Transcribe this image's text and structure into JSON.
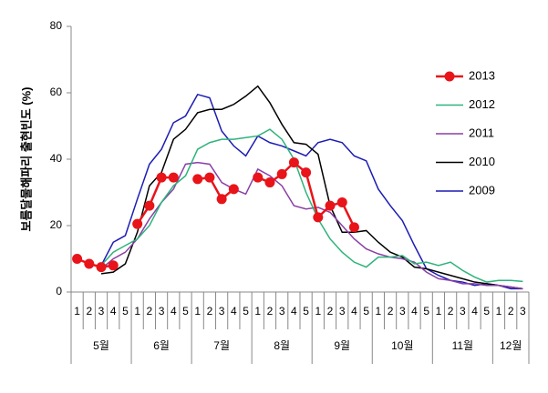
{
  "chart_data": {
    "type": "line",
    "y_label": "보름달물해파리 출현빈도 (%)",
    "categories": [
      "1",
      "2",
      "3",
      "4",
      "5",
      "1",
      "2",
      "3",
      "4",
      "5",
      "1",
      "2",
      "3",
      "4",
      "5",
      "1",
      "2",
      "3",
      "4",
      "5",
      "1",
      "2",
      "3",
      "4",
      "5",
      "1",
      "2",
      "3",
      "4",
      "5",
      "1",
      "2",
      "3",
      "4",
      "5",
      "1",
      "2",
      "3"
    ],
    "groups": [
      "5월",
      "6월",
      "7월",
      "8월",
      "9월",
      "10월",
      "11월",
      "12월"
    ],
    "ylim": [
      0,
      80
    ],
    "yticks": [
      0,
      20,
      40,
      60,
      80
    ],
    "legend": "right",
    "series": [
      {
        "name": "2013",
        "color": "#e8141a",
        "markers": true,
        "values": [
          10,
          8.5,
          7.5,
          8,
          null,
          20.5,
          26,
          34.5,
          34.5,
          null,
          34,
          34.5,
          28,
          31,
          null,
          34.5,
          33,
          35.5,
          39,
          36,
          22.5,
          26,
          27,
          19.5,
          null,
          null,
          null,
          null,
          null,
          null,
          null,
          null,
          null,
          null,
          null,
          null,
          null,
          null
        ]
      },
      {
        "name": "2012",
        "color": "#2db37a",
        "markers": false,
        "values": [
          null,
          null,
          8,
          12,
          14,
          16,
          20,
          27,
          32,
          35,
          43,
          45,
          46,
          46,
          46.5,
          47,
          49,
          46,
          40,
          30,
          22,
          16,
          12,
          9,
          7.5,
          10.5,
          10.5,
          11,
          8.5,
          9,
          8,
          9,
          6.5,
          4.5,
          3,
          3.5,
          3.5,
          3.2
        ]
      },
      {
        "name": "2011",
        "color": "#8a3fa6",
        "markers": false,
        "values": [
          null,
          null,
          7,
          10,
          12,
          16,
          22,
          27,
          31,
          38.5,
          39,
          38.5,
          33,
          31,
          29.5,
          37,
          35,
          32,
          26,
          25,
          25.5,
          24,
          20,
          16,
          13,
          11.5,
          10.5,
          10,
          9,
          6,
          4,
          3.5,
          2.5,
          2.5,
          2,
          2,
          1.5,
          1
        ]
      },
      {
        "name": "2010",
        "color": "#000000",
        "markers": false,
        "values": [
          null,
          null,
          5.5,
          6,
          8.5,
          18,
          32,
          36,
          46,
          49,
          54,
          55,
          55,
          56.5,
          59,
          62,
          57,
          50.5,
          45,
          44.5,
          41.5,
          26,
          18,
          18,
          18.5,
          15,
          12,
          10.5,
          7.5,
          7,
          6,
          5,
          4,
          3,
          2.5,
          2,
          1.5,
          1
        ]
      },
      {
        "name": "2009",
        "color": "#1c1cb4",
        "markers": false,
        "values": [
          null,
          null,
          8,
          15,
          17,
          28,
          38.5,
          43,
          51,
          53,
          59.5,
          58.5,
          48.5,
          44,
          41,
          47,
          45,
          44,
          42.5,
          41,
          45,
          46,
          45,
          41,
          39.5,
          31,
          26,
          21.5,
          14,
          7,
          5,
          3.5,
          3,
          2,
          2.5,
          2,
          1,
          1
        ]
      }
    ]
  }
}
